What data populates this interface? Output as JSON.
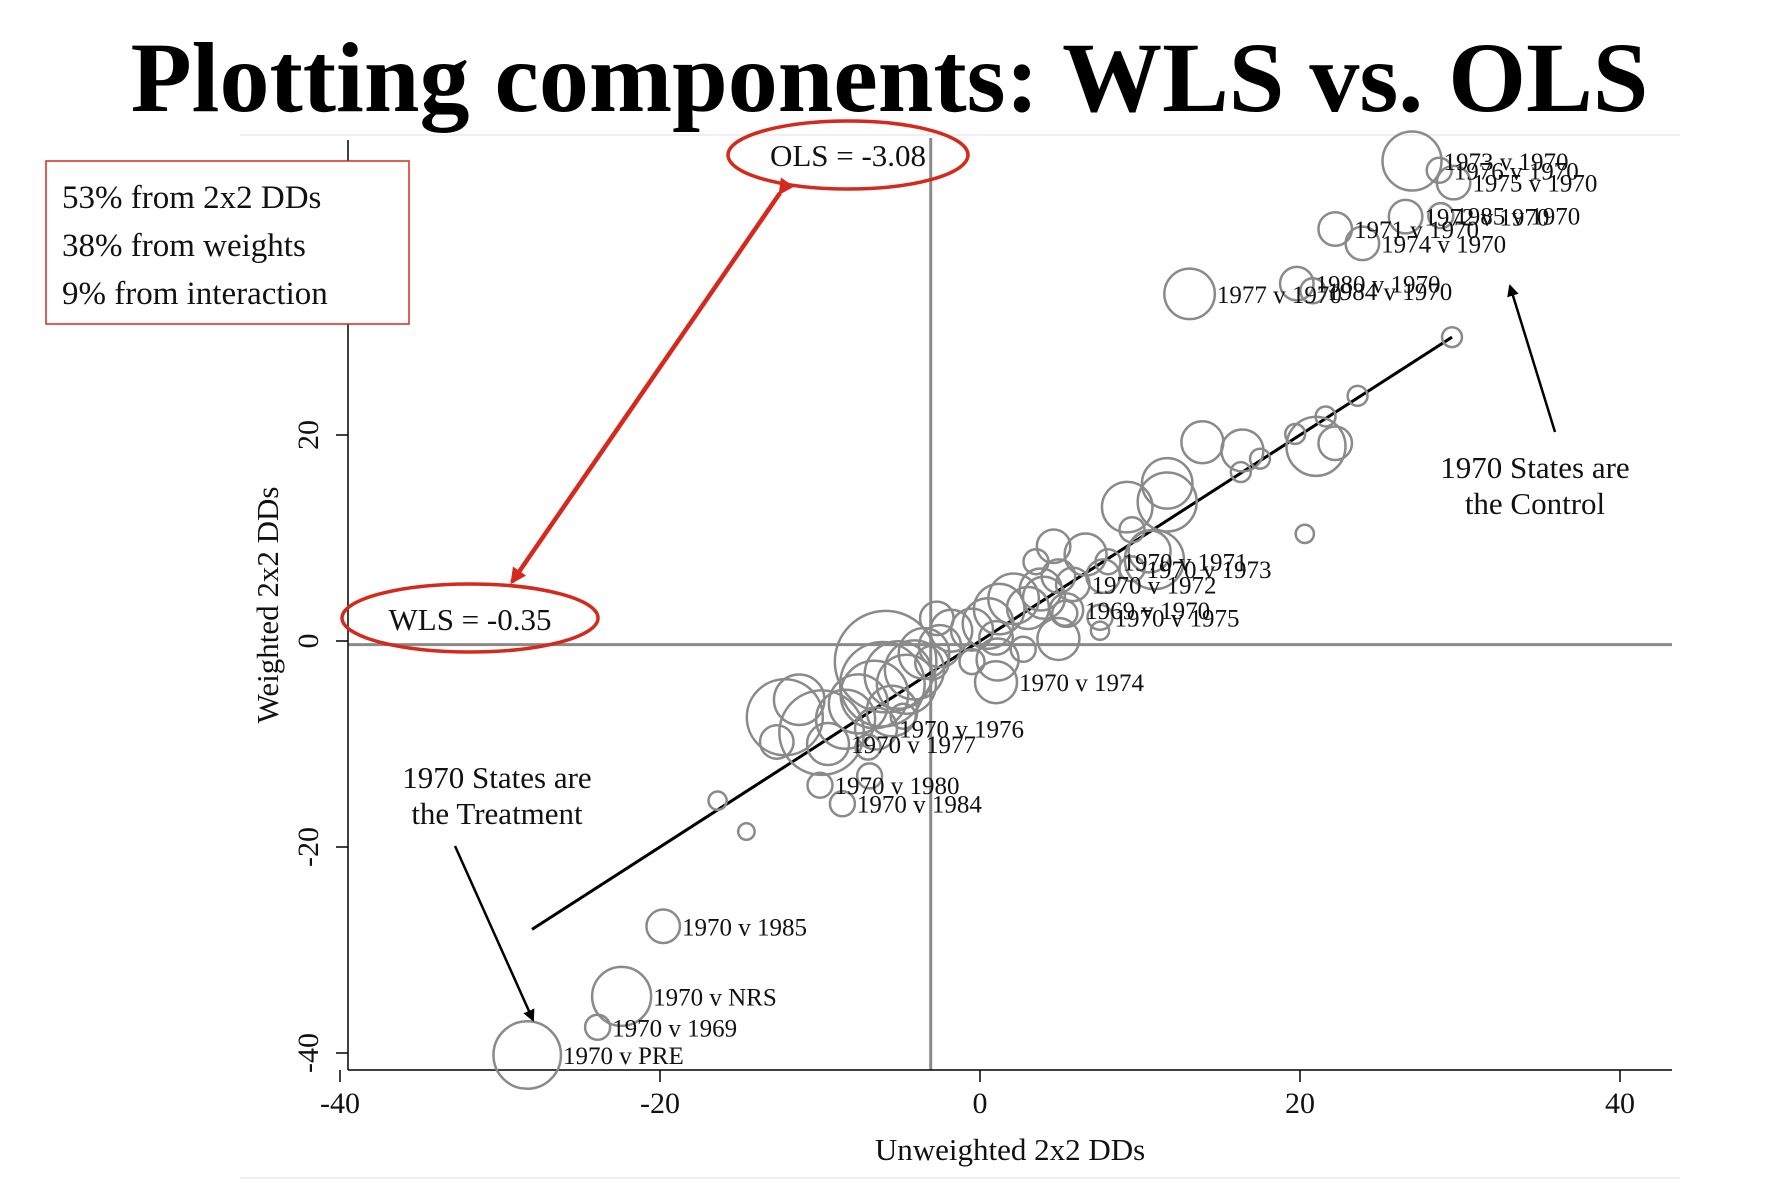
{
  "slide": {
    "title": "Plotting components: WLS vs. OLS"
  },
  "stats_box": {
    "lines": [
      "53% from 2x2 DDs",
      "38% from weights",
      "9% from interaction"
    ],
    "border_color": "#d42a1e"
  },
  "badges": {
    "ols": "OLS = -3.08",
    "wls": "WLS = -0.35",
    "color": "#d42a1e"
  },
  "notes": {
    "control": [
      "1970 States are",
      "the Control"
    ],
    "treatment": [
      "1970 States are",
      "the Treatment"
    ]
  },
  "chart_data": {
    "type": "scatter",
    "xlabel": "Unweighted 2x2 DDs",
    "ylabel": "Weighted 2x2 DDs",
    "xlim": [
      -40,
      40
    ],
    "ylim": [
      -42,
      49
    ],
    "xticks": [
      -40,
      -20,
      0,
      20,
      40
    ],
    "yticks": [
      -40,
      -20,
      0,
      20
    ],
    "reference_lines": {
      "vertical_x": -3.08,
      "horizontal_y": -0.35
    },
    "fit_line": {
      "from": [
        -28,
        -28
      ],
      "to": [
        29.5,
        29.5
      ]
    },
    "colors": {
      "marker": "#8a8a8a",
      "fit": "#000000",
      "reference": "#8a8a8a"
    },
    "labeled_points": [
      {
        "label": "1973 v 1970",
        "x": 27.0,
        "y": 46.6,
        "w": 3
      },
      {
        "label": "1976 v 1970",
        "x": 28.7,
        "y": 45.7,
        "w": 1
      },
      {
        "label": "1975 v 1970",
        "x": 29.6,
        "y": 44.5,
        "w": 1.5
      },
      {
        "label": "1972 v 1970",
        "x": 26.6,
        "y": 41.2,
        "w": 1.5
      },
      {
        "label": "1985 v 1970",
        "x": 28.8,
        "y": 41.3,
        "w": 1
      },
      {
        "label": "1971 v 1970",
        "x": 22.2,
        "y": 40.0,
        "w": 1.5
      },
      {
        "label": "1974 v 1970",
        "x": 23.9,
        "y": 38.6,
        "w": 1.5
      },
      {
        "label": "1980 v 1970",
        "x": 19.8,
        "y": 34.7,
        "w": 1.5
      },
      {
        "label": "1984 v 1970",
        "x": 20.8,
        "y": 34.0,
        "w": 1
      },
      {
        "label": "1977 v 1970",
        "x": 13.1,
        "y": 33.7,
        "w": 2.5
      },
      {
        "label": "1970 v 1971",
        "x": 8.0,
        "y": 7.7,
        "w": 1
      },
      {
        "label": "1970 v 1973",
        "x": 9.5,
        "y": 7.0,
        "w": 1
      },
      {
        "label": "1970 v 1972",
        "x": 5.8,
        "y": 5.5,
        "w": 1.5
      },
      {
        "label": "1969 v 1970",
        "x": 5.4,
        "y": 3.0,
        "w": 1.5
      },
      {
        "label": "1970 v 1975",
        "x": 7.5,
        "y": 2.3,
        "w": 1
      },
      {
        "label": "1970 v 1974",
        "x": 1.0,
        "y": -4.0,
        "w": 2
      },
      {
        "label": "1970 v 1976",
        "x": -6.5,
        "y": -8.5,
        "w": 2
      },
      {
        "label": "1970 v 1977",
        "x": -9.5,
        "y": -10.0,
        "w": 2
      },
      {
        "label": "1970 v 1980",
        "x": -10.0,
        "y": -14.0,
        "w": 1
      },
      {
        "label": "1970 v 1984",
        "x": -8.6,
        "y": -15.8,
        "w": 1
      },
      {
        "label": "1970 v 1985",
        "x": -19.8,
        "y": -27.7,
        "w": 1.5
      },
      {
        "label": "1970 v NRS",
        "x": -22.4,
        "y": -34.5,
        "w": 3
      },
      {
        "label": "1970 v 1969",
        "x": -23.9,
        "y": -37.5,
        "w": 1
      },
      {
        "label": "1970 v PRE",
        "x": -28.3,
        "y": -40.2,
        "w": 3.5
      }
    ],
    "points": [
      {
        "x": 13.9,
        "y": 19.3,
        "w": 2
      },
      {
        "x": 16.4,
        "y": 18.5,
        "w": 2
      },
      {
        "x": 21.0,
        "y": 18.9,
        "w": 3
      },
      {
        "x": 22.2,
        "y": 19.2,
        "w": 1.5
      },
      {
        "x": 19.7,
        "y": 20.1,
        "w": 0.7
      },
      {
        "x": 21.6,
        "y": 21.8,
        "w": 0.7
      },
      {
        "x": 23.6,
        "y": 23.8,
        "w": 0.7
      },
      {
        "x": 29.5,
        "y": 29.5,
        "w": 0.7
      },
      {
        "x": 16.3,
        "y": 16.4,
        "w": 0.7
      },
      {
        "x": 17.5,
        "y": 17.7,
        "w": 0.7
      },
      {
        "x": 11.7,
        "y": 15.3,
        "w": 2.5
      },
      {
        "x": 11.7,
        "y": 13.5,
        "w": 3
      },
      {
        "x": 9.2,
        "y": 13.0,
        "w": 2.5
      },
      {
        "x": 20.3,
        "y": 10.4,
        "w": 0.6
      },
      {
        "x": 9.5,
        "y": 10.8,
        "w": 1
      },
      {
        "x": 10.6,
        "y": 8.7,
        "w": 2
      },
      {
        "x": 10.9,
        "y": 7.9,
        "w": 3
      },
      {
        "x": 4.6,
        "y": 9.2,
        "w": 1.5
      },
      {
        "x": 6.6,
        "y": 8.4,
        "w": 2
      },
      {
        "x": 3.5,
        "y": 7.7,
        "w": 1
      },
      {
        "x": 4.9,
        "y": 6.3,
        "w": 1.5
      },
      {
        "x": 7.7,
        "y": 6.3,
        "w": 1.5
      },
      {
        "x": 3.8,
        "y": 5.0,
        "w": 2
      },
      {
        "x": 2.1,
        "y": 4.1,
        "w": 2.5
      },
      {
        "x": 3.0,
        "y": 3.2,
        "w": 2
      },
      {
        "x": 1.2,
        "y": 3.1,
        "w": 2.5
      },
      {
        "x": 4.0,
        "y": 4.2,
        "w": 2
      },
      {
        "x": 0.5,
        "y": 1.7,
        "w": 2.5
      },
      {
        "x": -0.5,
        "y": 1.1,
        "w": 2
      },
      {
        "x": 1.0,
        "y": 0.3,
        "w": 1.5
      },
      {
        "x": -2.7,
        "y": 2.2,
        "w": 1.5
      },
      {
        "x": -1.8,
        "y": 1.0,
        "w": 2
      },
      {
        "x": 4.9,
        "y": 0.2,
        "w": 2
      },
      {
        "x": 5.3,
        "y": 2.7,
        "w": 1
      },
      {
        "x": 7.5,
        "y": 1.0,
        "w": 0.6
      },
      {
        "x": 2.7,
        "y": -0.8,
        "w": 1
      },
      {
        "x": 1.1,
        "y": -1.8,
        "w": 2
      },
      {
        "x": -0.5,
        "y": -2.0,
        "w": 1
      },
      {
        "x": -2.5,
        "y": -0.5,
        "w": 2
      },
      {
        "x": -3.5,
        "y": -1.2,
        "w": 2.5
      },
      {
        "x": -5.9,
        "y": -2.0,
        "w": 5.5
      },
      {
        "x": -6.1,
        "y": -4.2,
        "w": 4.5
      },
      {
        "x": -5.1,
        "y": -3.3,
        "w": 3.5
      },
      {
        "x": -4.1,
        "y": -2.8,
        "w": 3
      },
      {
        "x": -4.6,
        "y": -4.2,
        "w": 3
      },
      {
        "x": -6.6,
        "y": -5.2,
        "w": 3.5
      },
      {
        "x": -7.6,
        "y": -6.1,
        "w": 3
      },
      {
        "x": -5.5,
        "y": -6.8,
        "w": 2.5
      },
      {
        "x": -8.4,
        "y": -7.6,
        "w": 3
      },
      {
        "x": -9.9,
        "y": -8.9,
        "w": 4.5
      },
      {
        "x": -12.2,
        "y": -7.4,
        "w": 4
      },
      {
        "x": -11.3,
        "y": -5.7,
        "w": 2.5
      },
      {
        "x": -12.7,
        "y": -9.8,
        "w": 1.5
      },
      {
        "x": -7.0,
        "y": -10.3,
        "w": 1
      },
      {
        "x": -4.8,
        "y": -7.3,
        "w": 1
      },
      {
        "x": -6.9,
        "y": -13.1,
        "w": 1
      },
      {
        "x": -16.4,
        "y": -15.5,
        "w": 0.6
      },
      {
        "x": -14.6,
        "y": -18.5,
        "w": 0.5
      },
      {
        "x": -3.0,
        "y": -2.1,
        "w": 1.5
      }
    ]
  }
}
